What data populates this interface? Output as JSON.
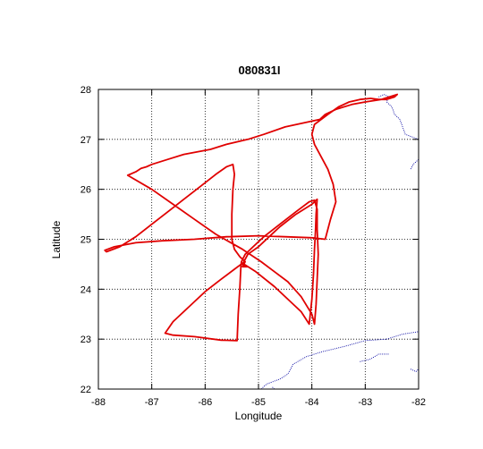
{
  "chart_data": {
    "type": "map-track",
    "title": "080831I",
    "xlabel": "Longitude",
    "ylabel": "Latitude",
    "xlim": [
      -88,
      -82
    ],
    "ylim": [
      22,
      28
    ],
    "xticks": [
      -88,
      -87,
      -86,
      -85,
      -84,
      -83,
      -82
    ],
    "yticks": [
      22,
      23,
      24,
      25,
      26,
      27,
      28
    ],
    "xtick_labels": [
      "-88",
      "-87",
      "-86",
      "-85",
      "-84",
      "-83",
      "-82"
    ],
    "ytick_labels": [
      "22",
      "23",
      "24",
      "25",
      "26",
      "27",
      "28"
    ],
    "grid": true,
    "colors": {
      "track": "#e00000",
      "coastline": "#0000a0",
      "frame": "#000000"
    },
    "coastlines": [
      {
        "name": "florida-west-coast",
        "points": [
          [
            -82.75,
            27.85
          ],
          [
            -82.65,
            27.9
          ],
          [
            -82.55,
            27.85
          ],
          [
            -82.6,
            27.75
          ],
          [
            -82.5,
            27.65
          ],
          [
            -82.45,
            27.5
          ],
          [
            -82.35,
            27.4
          ],
          [
            -82.3,
            27.25
          ],
          [
            -82.25,
            27.1
          ],
          [
            -82.0,
            27.0
          ]
        ]
      },
      {
        "name": "florida-coast-lower",
        "points": [
          [
            -82.0,
            26.6
          ],
          [
            -82.1,
            26.5
          ],
          [
            -82.15,
            26.4
          ]
        ]
      },
      {
        "name": "cuba-north-coast",
        "points": [
          [
            -84.95,
            22.0
          ],
          [
            -84.85,
            22.1
          ],
          [
            -84.6,
            22.2
          ],
          [
            -84.45,
            22.3
          ],
          [
            -84.35,
            22.5
          ],
          [
            -84.1,
            22.65
          ],
          [
            -83.8,
            22.75
          ],
          [
            -83.4,
            22.85
          ],
          [
            -83.0,
            22.97
          ],
          [
            -82.6,
            23.0
          ],
          [
            -82.3,
            23.1
          ],
          [
            -82.0,
            23.15
          ]
        ]
      },
      {
        "name": "cuba-inner-coast",
        "points": [
          [
            -83.1,
            22.55
          ],
          [
            -82.9,
            22.6
          ],
          [
            -82.75,
            22.7
          ],
          [
            -82.55,
            22.7
          ]
        ]
      },
      {
        "name": "isla-juventud",
        "points": [
          [
            -82.15,
            22.4
          ],
          [
            -82.05,
            22.35
          ],
          [
            -82.0,
            22.4
          ]
        ]
      },
      {
        "name": "cuba-southwest-coast",
        "points": [
          [
            -84.7,
            22.0
          ],
          [
            -84.75,
            22.05
          ]
        ]
      }
    ],
    "track": [
      [
        -82.4,
        27.9
      ],
      [
        -82.55,
        27.85
      ],
      [
        -82.7,
        27.8
      ],
      [
        -83.0,
        27.75
      ],
      [
        -83.25,
        27.7
      ],
      [
        -83.55,
        27.6
      ],
      [
        -83.75,
        27.5
      ],
      [
        -83.85,
        27.4
      ],
      [
        -84.5,
        27.25
      ],
      [
        -84.9,
        27.1
      ],
      [
        -85.2,
        27.0
      ],
      [
        -85.6,
        26.9
      ],
      [
        -85.9,
        26.8
      ],
      [
        -86.4,
        26.7
      ],
      [
        -86.7,
        26.6
      ],
      [
        -87.0,
        26.5
      ],
      [
        -87.1,
        26.45
      ],
      [
        -87.2,
        26.42
      ],
      [
        -87.3,
        26.35
      ],
      [
        -87.45,
        26.28
      ],
      [
        -87.0,
        26.0
      ],
      [
        -86.6,
        25.7
      ],
      [
        -86.2,
        25.4
      ],
      [
        -85.8,
        25.1
      ],
      [
        -85.3,
        24.8
      ],
      [
        -84.95,
        24.55
      ],
      [
        -84.7,
        24.35
      ],
      [
        -84.45,
        24.15
      ],
      [
        -84.2,
        23.85
      ],
      [
        -84.0,
        23.5
      ],
      [
        -83.95,
        23.3
      ],
      [
        -83.92,
        23.7
      ],
      [
        -83.9,
        24.2
      ],
      [
        -83.88,
        24.7
      ],
      [
        -83.9,
        25.2
      ],
      [
        -83.9,
        25.6
      ],
      [
        -83.95,
        25.78
      ],
      [
        -84.05,
        25.75
      ],
      [
        -84.3,
        25.55
      ],
      [
        -84.6,
        25.3
      ],
      [
        -84.9,
        25.05
      ],
      [
        -85.1,
        24.85
      ],
      [
        -85.25,
        24.7
      ],
      [
        -85.32,
        24.55
      ],
      [
        -85.33,
        24.45
      ],
      [
        -85.35,
        24.0
      ],
      [
        -85.38,
        23.5
      ],
      [
        -85.4,
        22.97
      ],
      [
        -85.7,
        22.98
      ],
      [
        -86.2,
        23.05
      ],
      [
        -86.6,
        23.08
      ],
      [
        -86.75,
        23.12
      ],
      [
        -86.6,
        23.35
      ],
      [
        -86.3,
        23.65
      ],
      [
        -86.0,
        23.95
      ],
      [
        -85.7,
        24.2
      ],
      [
        -85.45,
        24.4
      ],
      [
        -85.3,
        24.52
      ],
      [
        -85.05,
        24.35
      ],
      [
        -84.7,
        24.05
      ],
      [
        -84.45,
        23.8
      ],
      [
        -84.2,
        23.55
      ],
      [
        -84.05,
        23.3
      ],
      [
        -84.0,
        23.8
      ],
      [
        -83.97,
        24.3
      ],
      [
        -83.95,
        24.8
      ],
      [
        -83.93,
        25.2
      ],
      [
        -83.92,
        25.5
      ],
      [
        -83.9,
        25.8
      ],
      [
        -84.0,
        25.7
      ],
      [
        -84.3,
        25.5
      ],
      [
        -84.6,
        25.25
      ],
      [
        -84.8,
        25.05
      ],
      [
        -85.0,
        24.85
      ],
      [
        -85.2,
        24.7
      ],
      [
        -85.3,
        24.5
      ],
      [
        -85.2,
        24.45
      ],
      [
        -85.3,
        24.45
      ],
      [
        -85.25,
        24.55
      ],
      [
        -85.35,
        24.65
      ],
      [
        -85.45,
        24.8
      ],
      [
        -85.5,
        25.0
      ],
      [
        -85.5,
        25.5
      ],
      [
        -85.48,
        26.0
      ],
      [
        -85.45,
        26.3
      ],
      [
        -85.48,
        26.5
      ],
      [
        -85.6,
        26.45
      ],
      [
        -85.8,
        26.3
      ],
      [
        -86.1,
        26.05
      ],
      [
        -86.4,
        25.8
      ],
      [
        -86.7,
        25.55
      ],
      [
        -87.0,
        25.3
      ],
      [
        -87.3,
        25.05
      ],
      [
        -87.6,
        24.85
      ],
      [
        -87.85,
        24.75
      ],
      [
        -87.88,
        24.78
      ],
      [
        -87.7,
        24.85
      ],
      [
        -87.3,
        24.93
      ],
      [
        -86.8,
        24.97
      ],
      [
        -86.2,
        25.0
      ],
      [
        -85.6,
        25.05
      ],
      [
        -85.0,
        25.07
      ],
      [
        -84.5,
        25.05
      ],
      [
        -84.0,
        25.03
      ],
      [
        -83.75,
        25.0
      ],
      [
        -83.65,
        25.4
      ],
      [
        -83.55,
        25.75
      ],
      [
        -83.6,
        26.1
      ],
      [
        -83.7,
        26.4
      ],
      [
        -83.85,
        26.7
      ],
      [
        -83.95,
        26.9
      ],
      [
        -84.0,
        27.1
      ],
      [
        -83.95,
        27.3
      ],
      [
        -83.7,
        27.5
      ],
      [
        -83.5,
        27.65
      ],
      [
        -83.3,
        27.75
      ],
      [
        -83.1,
        27.8
      ],
      [
        -82.9,
        27.82
      ],
      [
        -82.75,
        27.8
      ],
      [
        -82.6,
        27.8
      ],
      [
        -82.45,
        27.85
      ],
      [
        -82.4,
        27.9
      ]
    ]
  }
}
